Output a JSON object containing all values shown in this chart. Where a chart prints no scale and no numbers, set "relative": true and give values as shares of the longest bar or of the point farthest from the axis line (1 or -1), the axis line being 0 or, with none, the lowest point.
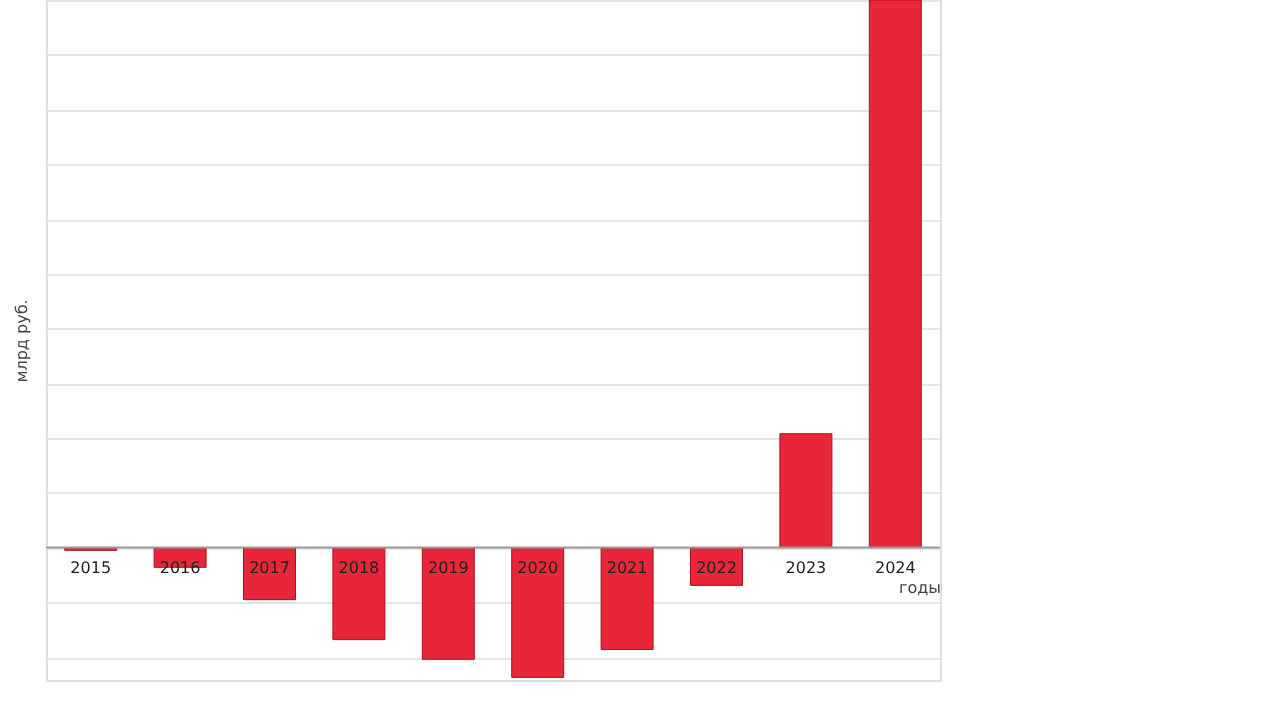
{
  "chart_data": {
    "type": "bar",
    "ylabel": "млрд руб.",
    "xlabel": "годы",
    "categories": [
      "2015",
      "2016",
      "2017",
      "2018",
      "2019",
      "2020",
      "2021",
      "2022",
      "2023",
      "2024"
    ],
    "values": [
      -0.005,
      -0.036,
      -0.095,
      -0.168,
      -0.204,
      -0.237,
      -0.186,
      -0.069,
      0.208,
      1
    ],
    "color": "#e8263a",
    "relative": true,
    "grid": "y"
  }
}
